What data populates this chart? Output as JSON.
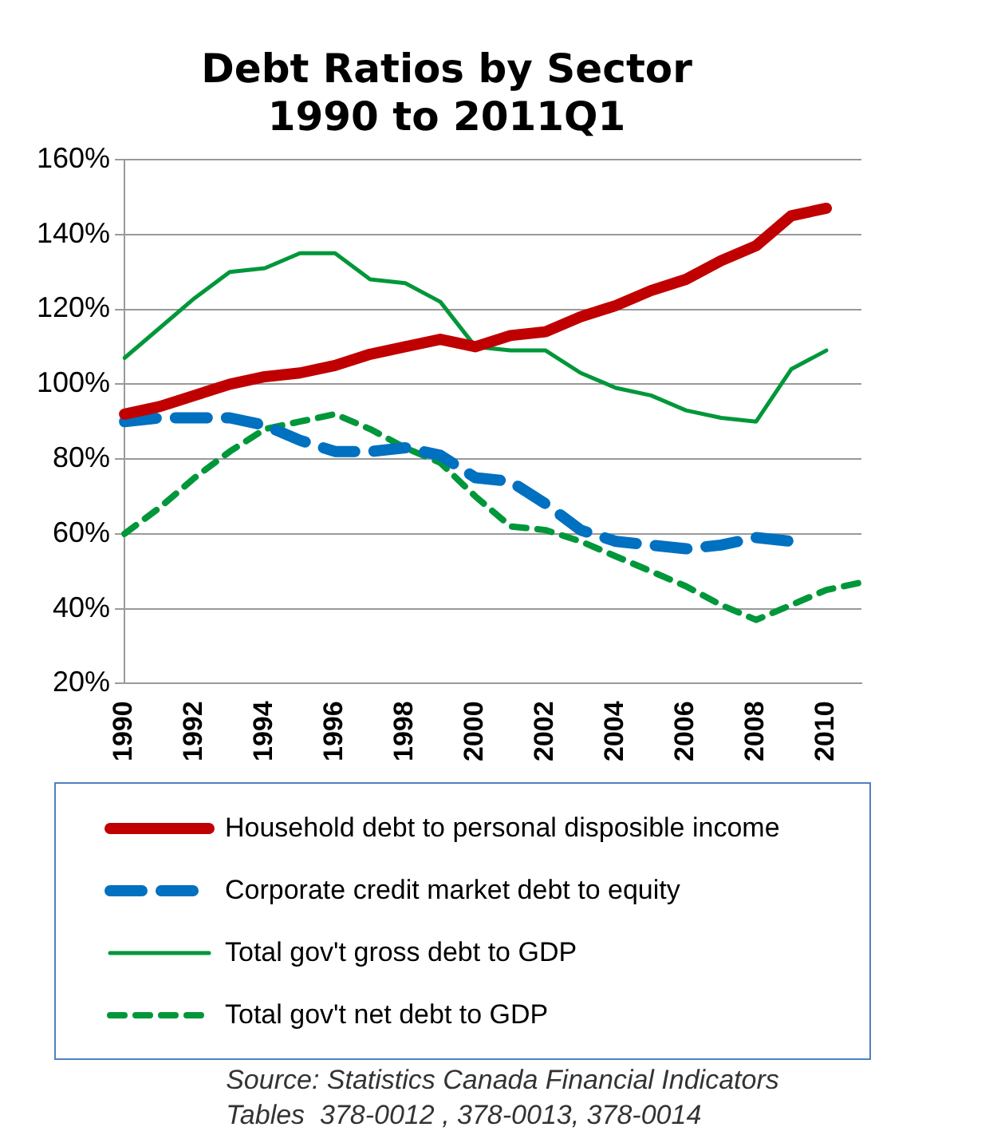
{
  "chart_data": {
    "type": "line",
    "title": "Debt Ratios by Sector\n1990 to 2011Q1",
    "categories": [
      "1990",
      null,
      "1992",
      null,
      "1994",
      null,
      "1996",
      null,
      "1998",
      null,
      "2000",
      null,
      "2002",
      null,
      "2004",
      null,
      "2006",
      null,
      "2008",
      null,
      "2010",
      null
    ],
    "series": [
      {
        "name": "Household debt to personal disposible income",
        "color": "#c00000",
        "line_style": "solid",
        "values": [
          92,
          94,
          97,
          100,
          102,
          103,
          105,
          108,
          110,
          112,
          110,
          113,
          114,
          118,
          121,
          125,
          128,
          133,
          137,
          145,
          147,
          null
        ]
      },
      {
        "name": "Corporate credit market debt to equity",
        "color": "#0070c0",
        "line_style": "dashed",
        "values": [
          90,
          91,
          91,
          91,
          89,
          85,
          82,
          82,
          83,
          81,
          75,
          74,
          68,
          61,
          58,
          57,
          56,
          57,
          59,
          58,
          null,
          null
        ]
      },
      {
        "name": "Total gov't gross debt to GDP",
        "color": "#00973a",
        "line_style": "solid",
        "values": [
          107,
          115,
          123,
          130,
          131,
          135,
          135,
          128,
          127,
          122,
          110,
          109,
          109,
          103,
          99,
          97,
          93,
          91,
          90,
          104,
          109,
          null
        ]
      },
      {
        "name": "Total gov't net debt to GDP",
        "color": "#00973a",
        "line_style": "dotted",
        "values": [
          60,
          67,
          75,
          82,
          88,
          90,
          92,
          88,
          83,
          79,
          70,
          62,
          61,
          58,
          54,
          50,
          46,
          41,
          37,
          41,
          45,
          47
        ]
      }
    ],
    "ylim": [
      20,
      160
    ],
    "yticks": [
      {
        "value": 20,
        "label": "20%"
      },
      {
        "value": 40,
        "label": "40%"
      },
      {
        "value": 60,
        "label": "60%"
      },
      {
        "value": 80,
        "label": "80%"
      },
      {
        "value": 100,
        "label": "100%"
      },
      {
        "value": 120,
        "label": "120%"
      },
      {
        "value": 140,
        "label": "140%"
      },
      {
        "value": 160,
        "label": "160%"
      }
    ],
    "grid": "y",
    "legend": "bottom",
    "marker": "none",
    "annotations": [
      "Source: Statistics Canada Financial Indicators\nTables  378-0012 , 378-0013, 378-0014"
    ]
  }
}
